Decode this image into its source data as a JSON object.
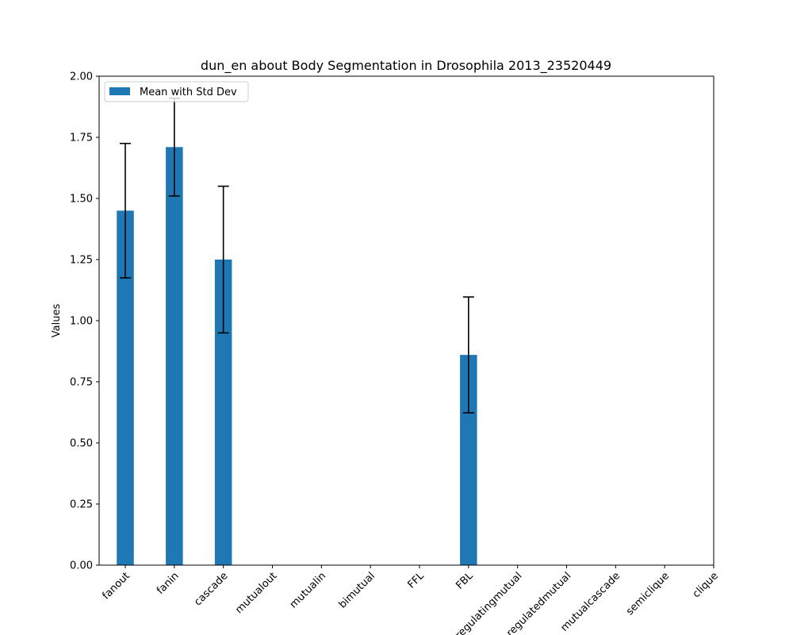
{
  "chart_data": {
    "type": "bar",
    "title": "dun_en about Body Segmentation in Drosophila 2013_23520449",
    "xlabel": "",
    "ylabel": "Values",
    "ylim": [
      0,
      2.0
    ],
    "yticks": [
      "0.00",
      "0.25",
      "0.50",
      "0.75",
      "1.00",
      "1.25",
      "1.50",
      "1.75",
      "2.00"
    ],
    "categories": [
      "fanout",
      "fanin",
      "cascade",
      "mutualout",
      "mutualin",
      "bimutual",
      "FFL",
      "FBL",
      "regulatingmutual",
      "regulatedmutual",
      "mutualcascade",
      "semiclique",
      "clique"
    ],
    "series": [
      {
        "name": "Mean with Std Dev",
        "color": "#1f77b4",
        "values": [
          1.45,
          1.71,
          1.25,
          0,
          0,
          0,
          0,
          0.86,
          0,
          0,
          0,
          0,
          0
        ],
        "errors": [
          0.275,
          0.2,
          0.3,
          0,
          0,
          0,
          0,
          0.237,
          0,
          0,
          0,
          0,
          0
        ]
      }
    ],
    "legend_position": "upper-left",
    "grid": false
  }
}
